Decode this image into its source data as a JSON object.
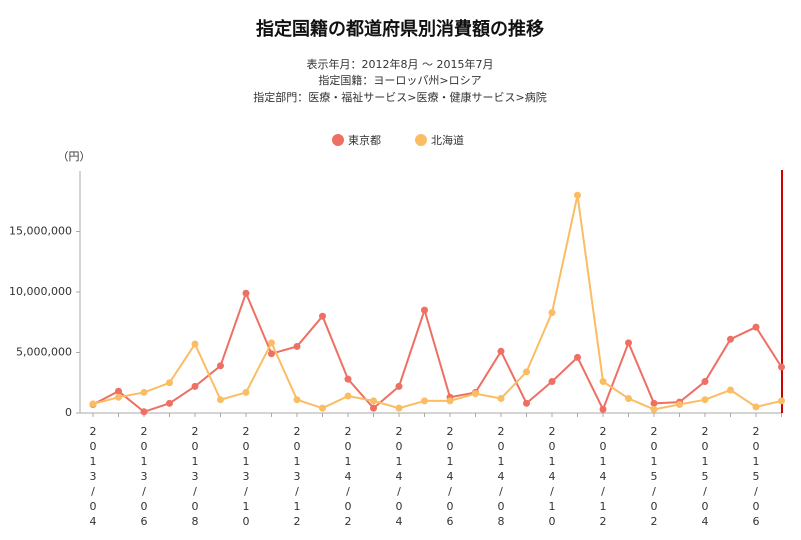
{
  "chart_data": {
    "type": "line",
    "title": "指定国籍の都道府県別消費額の推移",
    "subtitle": [
      "表示年月：2012年8月 ～ 2015年7月",
      "指定国籍：ヨーロッパ州>ロシア",
      "指定部門：医療・福祉サービス>医療・健康サービス>病院"
    ],
    "y_unit": "（円）",
    "categories": [
      "2013/04",
      null,
      "2013/06",
      null,
      "2013/08",
      null,
      "2013/10",
      null,
      "2013/12",
      null,
      "2014/02",
      null,
      "2014/04",
      null,
      "2014/06",
      null,
      "2014/08",
      null,
      "2014/10",
      null,
      "2014/12",
      null,
      "2015/02",
      null,
      "2015/04",
      null,
      "2015/06",
      null
    ],
    "series": [
      {
        "name": "東京都",
        "color": "#ee6f64",
        "values": [
          700000,
          1800000,
          100000,
          800000,
          2200000,
          3900000,
          9900000,
          4900000,
          5500000,
          8000000,
          2800000,
          400000,
          2200000,
          8500000,
          1300000,
          1700000,
          5100000,
          800000,
          2600000,
          4600000,
          300000,
          5800000,
          800000,
          900000,
          2600000,
          6100000,
          7100000,
          3800000
        ]
      },
      {
        "name": "北海道",
        "color": "#fbbd63",
        "values": [
          750000,
          1300000,
          1700000,
          2500000,
          5700000,
          1100000,
          1700000,
          5800000,
          1100000,
          400000,
          1400000,
          1000000,
          400000,
          1000000,
          1000000,
          1600000,
          1200000,
          3400000,
          8300000,
          18000000,
          2600000,
          1200000,
          300000,
          700000,
          1100000,
          1900000,
          500000,
          1000000
        ]
      }
    ],
    "ylim": [
      0,
      20000000
    ],
    "yticks": [
      0,
      {
        "value": 5000000,
        "label": "5,000,000"
      },
      {
        "value": 10000000,
        "label": "10,000,000"
      },
      {
        "value": 15000000,
        "label": "15,000,000"
      }
    ],
    "grid": false
  }
}
